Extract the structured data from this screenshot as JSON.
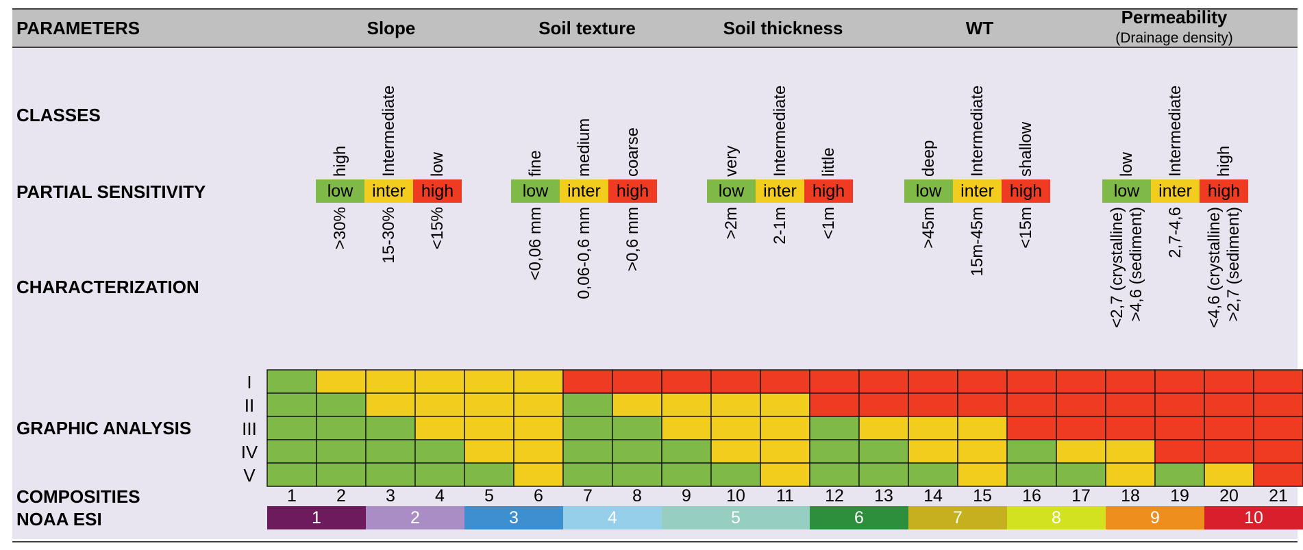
{
  "row_labels": {
    "parameters": "PARAMETERS",
    "classes": "CLASSES",
    "partial_sensitivity": "PARTIAL SENSITIVITY",
    "characterization": "CHARACTERIZATION",
    "graphic_analysis": "GRAPHIC ANALYSIS",
    "composites": "COMPOSITIES",
    "noaa_esi": "NOAA ESI"
  },
  "parameters": [
    {
      "name": "Slope",
      "subtitle": "",
      "classes": [
        "high",
        "Intermediate",
        "low"
      ],
      "sensitivity": [
        "low",
        "inter",
        "high"
      ],
      "characterization": [
        [
          ">30%"
        ],
        [
          "15-30%"
        ],
        [
          "<15%"
        ]
      ]
    },
    {
      "name": "Soil texture",
      "subtitle": "",
      "classes": [
        "fine",
        "medium",
        "coarse"
      ],
      "sensitivity": [
        "low",
        "inter",
        "high"
      ],
      "characterization": [
        [
          "<0,06 mm"
        ],
        [
          "0,06-0,6 mm"
        ],
        [
          ">0,6 mm"
        ]
      ]
    },
    {
      "name": "Soil thickness",
      "subtitle": "",
      "classes": [
        "very",
        "Intermediate",
        "little"
      ],
      "sensitivity": [
        "low",
        "inter",
        "high"
      ],
      "characterization": [
        [
          ">2m"
        ],
        [
          "2-1m"
        ],
        [
          "<1m"
        ]
      ]
    },
    {
      "name": "WT",
      "subtitle": "",
      "classes": [
        "deep",
        "Intermediate",
        "shallow"
      ],
      "sensitivity": [
        "low",
        "inter",
        "high"
      ],
      "characterization": [
        [
          ">45m"
        ],
        [
          "15m-45m"
        ],
        [
          "<15m"
        ]
      ]
    },
    {
      "name": "Permeability",
      "subtitle": "(Drainage density)",
      "classes": [
        "low",
        "Intermediate",
        "high"
      ],
      "sensitivity": [
        "low",
        "inter",
        "high"
      ],
      "characterization": [
        [
          "<2,7 (crystalline)",
          ">4,6 (sediment)"
        ],
        [
          "2,7-4,6"
        ],
        [
          "<4,6 (crystalline)",
          ">2,7 (sediment)"
        ]
      ]
    }
  ],
  "colors": {
    "low": "#7fba48",
    "inter": "#f2cd1e",
    "high": "#ef3b22",
    "header_bg": "#c0c0c0",
    "body_bg": "#e8e4f0"
  },
  "graphic_analysis": {
    "rows": [
      "I",
      "II",
      "III",
      "IV",
      "V"
    ],
    "composites": [
      "1",
      "2",
      "3",
      "4",
      "5",
      "6",
      "7",
      "8",
      "9",
      "10",
      "11",
      "12",
      "13",
      "14",
      "15",
      "16",
      "17",
      "18",
      "19",
      "20",
      "21"
    ],
    "levels": [
      [
        "low",
        "inter",
        "inter",
        "inter",
        "inter",
        "inter",
        "high",
        "high",
        "high",
        "high",
        "high",
        "high",
        "high",
        "high",
        "high",
        "high",
        "high",
        "high",
        "high",
        "high",
        "high"
      ],
      [
        "low",
        "low",
        "inter",
        "inter",
        "inter",
        "inter",
        "low",
        "inter",
        "inter",
        "inter",
        "inter",
        "high",
        "high",
        "high",
        "high",
        "high",
        "high",
        "high",
        "high",
        "high",
        "high"
      ],
      [
        "low",
        "low",
        "low",
        "inter",
        "inter",
        "inter",
        "low",
        "low",
        "inter",
        "inter",
        "inter",
        "low",
        "inter",
        "inter",
        "inter",
        "high",
        "high",
        "high",
        "high",
        "high",
        "high"
      ],
      [
        "low",
        "low",
        "low",
        "low",
        "inter",
        "inter",
        "low",
        "low",
        "low",
        "inter",
        "inter",
        "low",
        "low",
        "inter",
        "inter",
        "low",
        "inter",
        "inter",
        "high",
        "high",
        "high"
      ],
      [
        "low",
        "low",
        "low",
        "low",
        "low",
        "inter",
        "low",
        "low",
        "low",
        "low",
        "inter",
        "low",
        "low",
        "low",
        "inter",
        "low",
        "low",
        "inter",
        "low",
        "inter",
        "high"
      ]
    ]
  },
  "noaa_esi": [
    {
      "label": "1",
      "span": 2,
      "color": "#6e1b5e"
    },
    {
      "label": "2",
      "span": 2,
      "color": "#a98dc4"
    },
    {
      "label": "3",
      "span": 2,
      "color": "#3d8fd0"
    },
    {
      "label": "4",
      "span": 2,
      "color": "#96cfea"
    },
    {
      "label": "5",
      "span": 3,
      "color": "#96cfc2"
    },
    {
      "label": "6",
      "span": 2,
      "color": "#2d8f3c"
    },
    {
      "label": "7",
      "span": 2,
      "color": "#c4b11d"
    },
    {
      "label": "8",
      "span": 2,
      "color": "#d2e21e"
    },
    {
      "label": "9",
      "span": 2,
      "color": "#ee8f1d"
    },
    {
      "label": "10",
      "span": 2,
      "color": "#d81f2b"
    }
  ]
}
